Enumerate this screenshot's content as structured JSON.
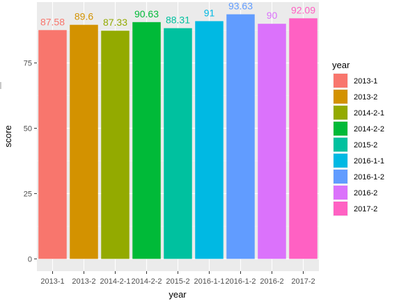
{
  "chart_data": {
    "type": "bar",
    "categories": [
      "2013-1",
      "2013-2",
      "2014-2-1",
      "2014-2-2",
      "2015-2",
      "2016-1-1",
      "2016-1-2",
      "2016-2",
      "2017-2"
    ],
    "values": [
      87.58,
      89.6,
      87.33,
      90.63,
      88.31,
      91,
      93.63,
      90,
      92.09
    ],
    "value_labels": [
      "87.58",
      "89.6",
      "87.33",
      "90.63",
      "88.31",
      "91",
      "93.63",
      "90",
      "92.09"
    ],
    "colors": [
      "#F8766D",
      "#D39200",
      "#93AA00",
      "#00BA38",
      "#00C19F",
      "#00B9E3",
      "#619CFF",
      "#DB72FB",
      "#FF61C3"
    ],
    "xlabel": "year",
    "ylabel": "score",
    "y_ticks": [
      0,
      25,
      50,
      75
    ],
    "ylim": [
      -4.7,
      98.3
    ],
    "grid": true,
    "background": "#EBEBEB",
    "legend": {
      "title": "year",
      "position": "right",
      "entries": [
        "2013-1",
        "2013-2",
        "2014-2-1",
        "2014-2-2",
        "2015-2",
        "2016-1-1",
        "2016-1-2",
        "2016-2",
        "2017-2"
      ]
    }
  }
}
